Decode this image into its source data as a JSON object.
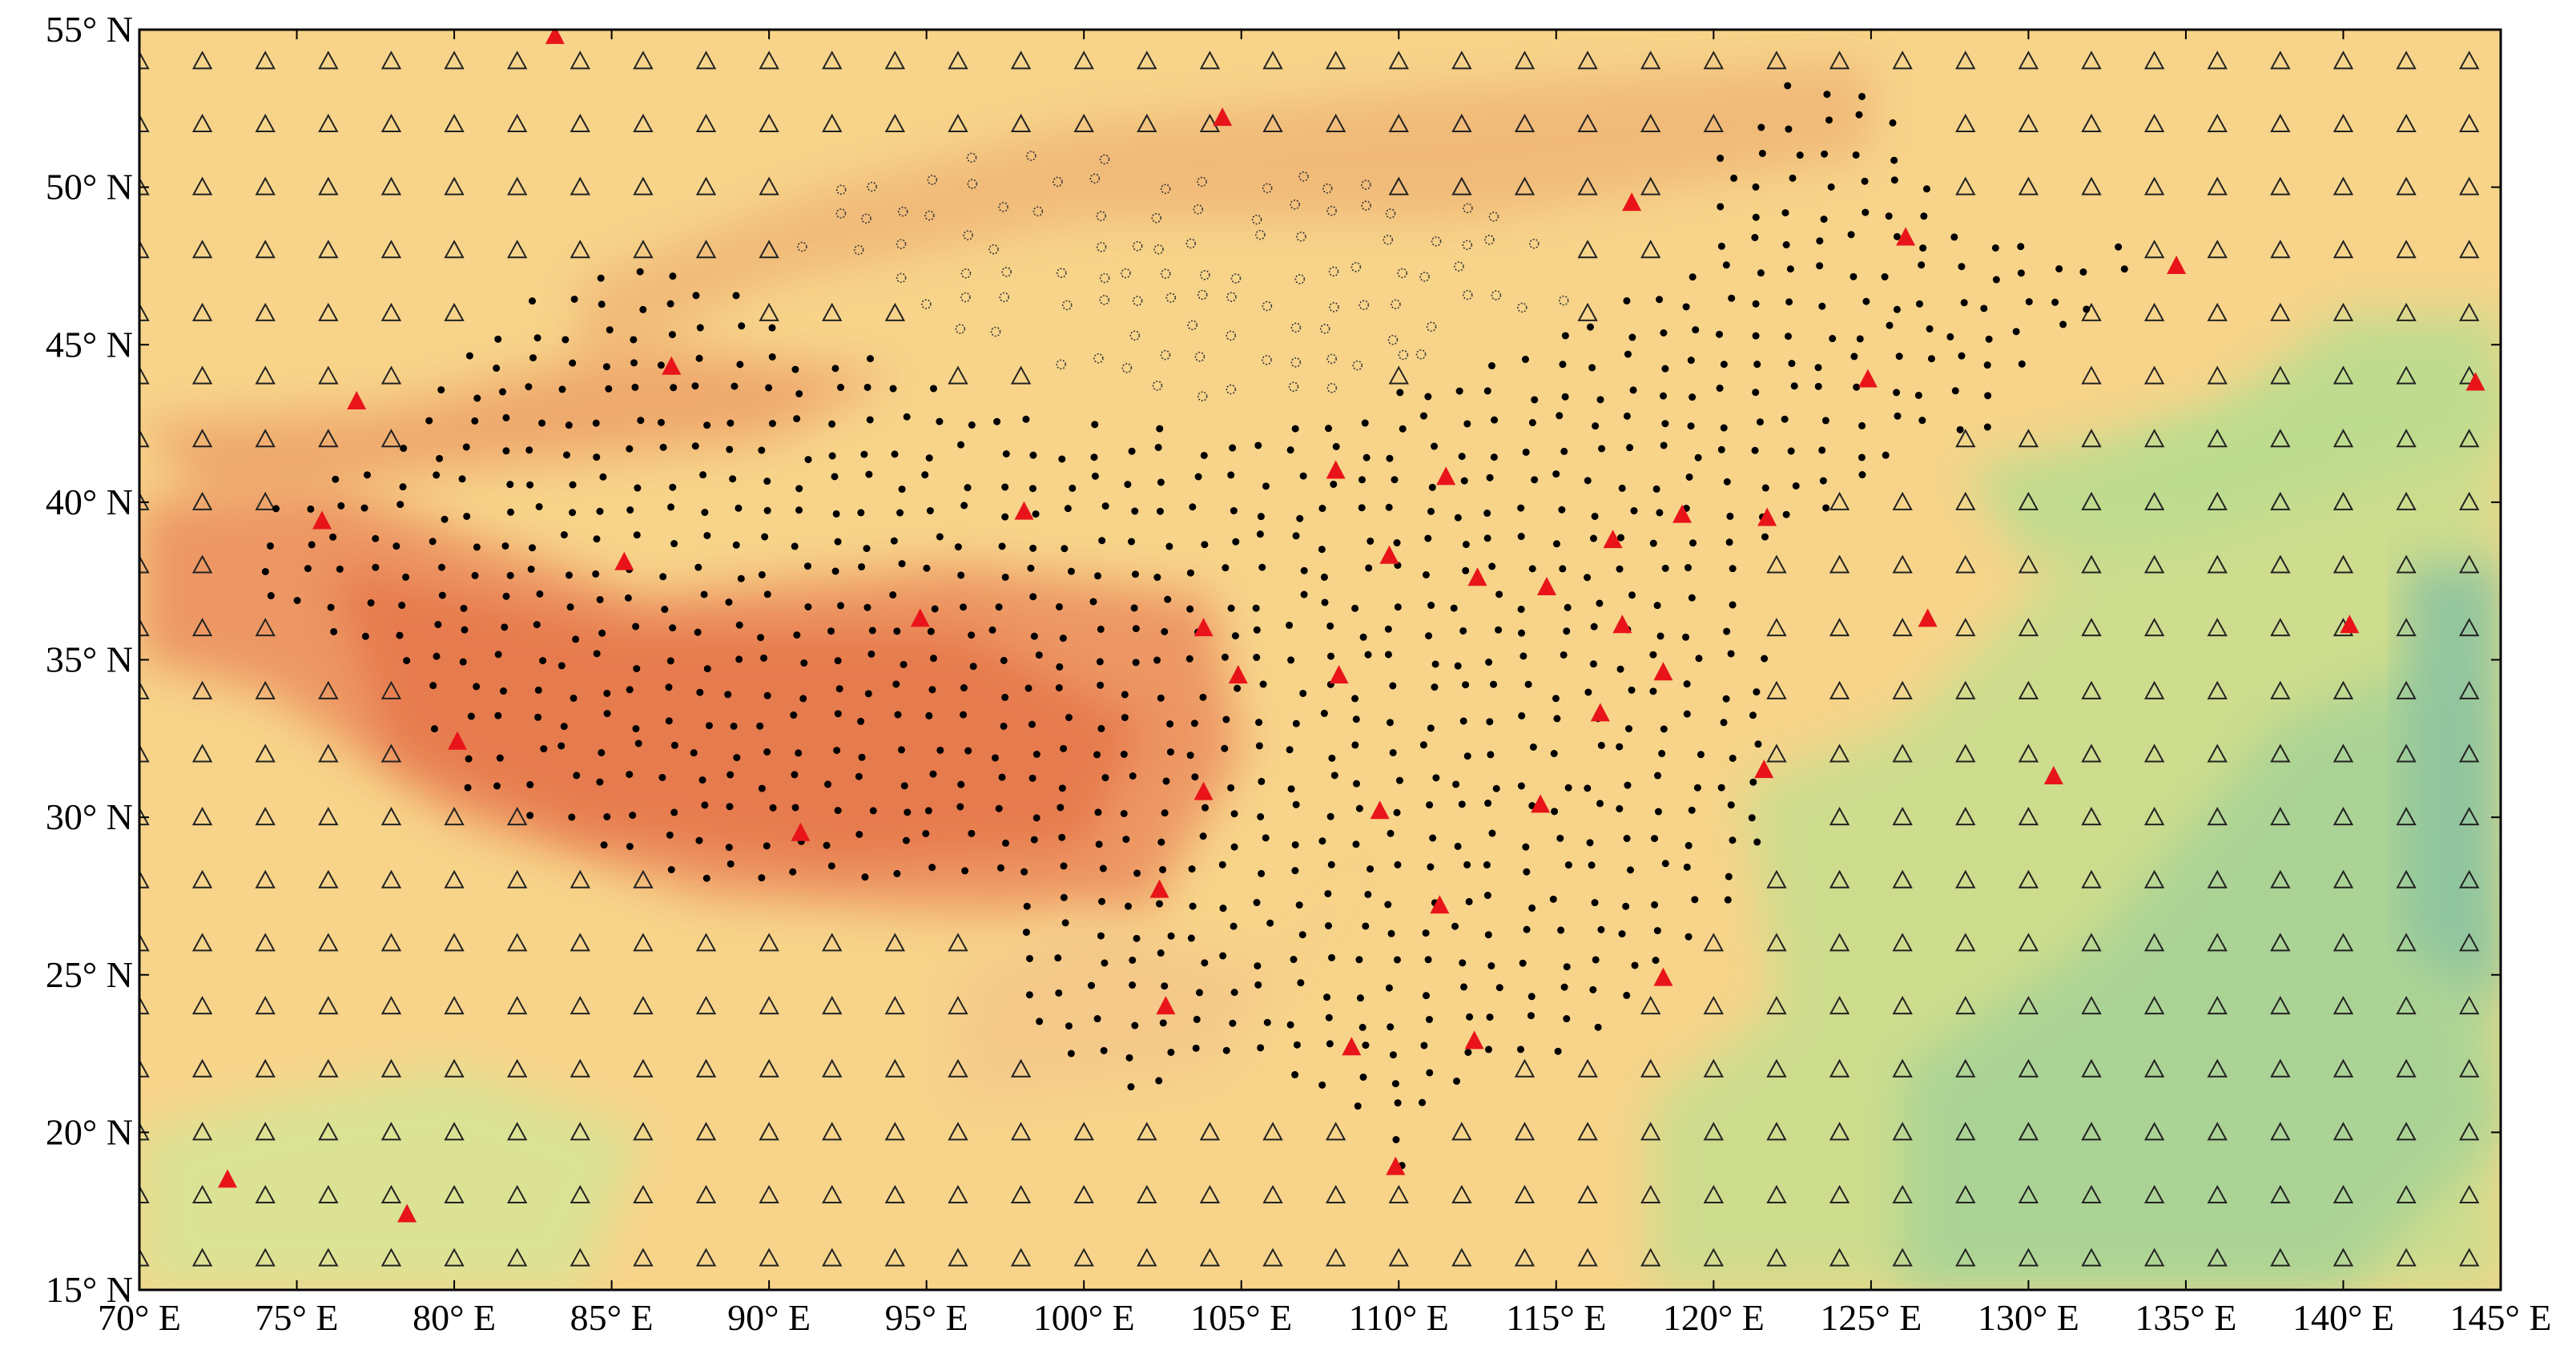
{
  "map": {
    "xlim": [
      70,
      145
    ],
    "ylim": [
      15,
      55
    ],
    "xticks": [
      {
        "value": 70,
        "label": "70° E"
      },
      {
        "value": 75,
        "label": "75° E"
      },
      {
        "value": 80,
        "label": "80° E"
      },
      {
        "value": 85,
        "label": "85° E"
      },
      {
        "value": 90,
        "label": "90° E"
      },
      {
        "value": 95,
        "label": "95° E"
      },
      {
        "value": 100,
        "label": "100° E"
      },
      {
        "value": 105,
        "label": "105° E"
      },
      {
        "value": 110,
        "label": "110° E"
      },
      {
        "value": 115,
        "label": "115° E"
      },
      {
        "value": 120,
        "label": "120° E"
      },
      {
        "value": 125,
        "label": "125° E"
      },
      {
        "value": 130,
        "label": "130° E"
      },
      {
        "value": 135,
        "label": "135° E"
      },
      {
        "value": 140,
        "label": "140° E"
      },
      {
        "value": 145,
        "label": "145° E"
      }
    ],
    "yticks": [
      {
        "value": 15,
        "label": "15° N"
      },
      {
        "value": 20,
        "label": "20° N"
      },
      {
        "value": 25,
        "label": "25° N"
      },
      {
        "value": 30,
        "label": "30° N"
      },
      {
        "value": 35,
        "label": "35° N"
      },
      {
        "value": 40,
        "label": "40° N"
      },
      {
        "value": 45,
        "label": "45° N"
      },
      {
        "value": 50,
        "label": "50° N"
      },
      {
        "value": 55,
        "label": "55° N"
      }
    ],
    "stations": {
      "color": "#e8141a",
      "lon": [
        83.2,
        104.4,
        117.4,
        126.1,
        134.7,
        76.9,
        86.9,
        124.9,
        144.2,
        75.8,
        85.4,
        98.1,
        108.0,
        111.5,
        109.7,
        112.5,
        114.7,
        116.8,
        119.0,
        121.7,
        94.8,
        103.8,
        117.1,
        126.8,
        140.2,
        104.9,
        108.1,
        118.4,
        116.4,
        80.1,
        103.8,
        109.4,
        114.5,
        121.6,
        130.8,
        91.0,
        102.4,
        111.3,
        118.4,
        102.6,
        108.5,
        112.4,
        109.9,
        72.8,
        78.5
      ],
      "lat": [
        54.8,
        52.2,
        49.5,
        48.4,
        47.5,
        43.2,
        44.3,
        43.9,
        43.8,
        39.4,
        38.1,
        39.7,
        41.0,
        40.8,
        38.3,
        37.6,
        37.3,
        38.8,
        39.6,
        39.5,
        36.3,
        36.0,
        36.1,
        36.3,
        36.1,
        34.5,
        34.5,
        34.6,
        33.3,
        32.4,
        30.8,
        30.2,
        30.4,
        31.5,
        31.3,
        29.5,
        27.7,
        27.2,
        24.9,
        24.0,
        22.7,
        22.9,
        18.9,
        18.5,
        17.4
      ]
    }
  }
}
